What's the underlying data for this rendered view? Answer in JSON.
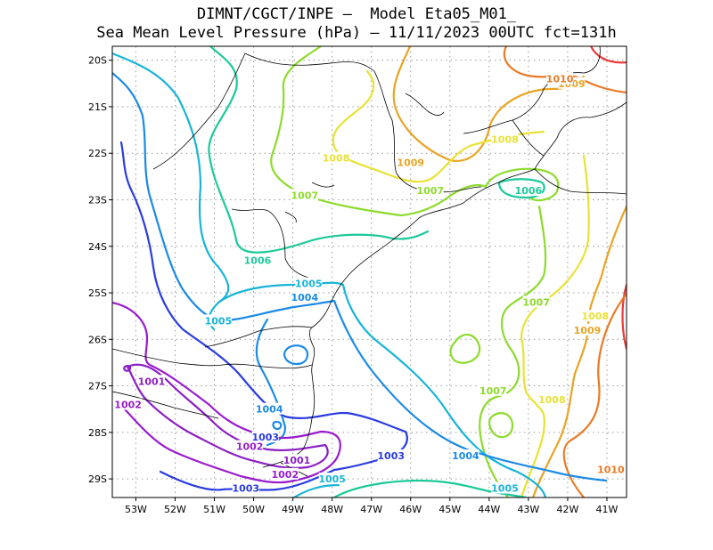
{
  "header": {
    "line1": "DIMNT/CGCT/INPE —  Model Eta05_M01_",
    "line2": "Sea Mean Level Pressure (hPa) — 11/11/2023 00UTC fct=131h"
  },
  "map": {
    "lat_labels": [
      "20S",
      "21S",
      "22S",
      "23S",
      "24S",
      "25S",
      "26S",
      "27S",
      "28S",
      "29S"
    ],
    "lon_labels": [
      "53W",
      "52W",
      "51W",
      "50W",
      "49W",
      "48W",
      "47W",
      "46W",
      "45W",
      "44W",
      "43W",
      "42W",
      "41W"
    ],
    "lat_range": [
      -29.4,
      -19.7
    ],
    "lon_range": [
      -53.6,
      -40.5
    ],
    "grid": true,
    "contour_interval_hPa": 1,
    "contour_colors": {
      "1001": "#8b1fc4",
      "1002": "#9a1ccc",
      "1003": "#2a3ce0",
      "1004": "#1a8ae6",
      "1005": "#18b4d8",
      "1006": "#1cc99a",
      "1007": "#8ddb2c",
      "1008": "#e8e234",
      "1009": "#e8a424",
      "1010": "#ea7a26",
      "1011": "#e83a3a"
    },
    "contour_labels": [
      {
        "text": "1001",
        "level": "1001",
        "lon": -52.6,
        "lat": -26.9
      },
      {
        "text": "1002",
        "level": "1002",
        "lon": -53.2,
        "lat": -27.4
      },
      {
        "text": "1002",
        "level": "1002",
        "lon": -50.1,
        "lat": -28.3
      },
      {
        "text": "1001",
        "level": "1001",
        "lon": -48.9,
        "lat": -28.6
      },
      {
        "text": "1002",
        "level": "1002",
        "lon": -49.2,
        "lat": -28.9
      },
      {
        "text": "1003",
        "level": "1003",
        "lon": -49.7,
        "lat": -28.1
      },
      {
        "text": "1003",
        "level": "1003",
        "lon": -50.2,
        "lat": -29.2
      },
      {
        "text": "1003",
        "level": "1003",
        "lon": -46.5,
        "lat": -28.5
      },
      {
        "text": "1004",
        "level": "1004",
        "lon": -49.6,
        "lat": -27.5
      },
      {
        "text": "1004",
        "level": "1004",
        "lon": -44.6,
        "lat": -28.5
      },
      {
        "text": "1004",
        "level": "1004",
        "lon": -48.7,
        "lat": -25.1
      },
      {
        "text": "1005",
        "level": "1005",
        "lon": -48.6,
        "lat": -24.8
      },
      {
        "text": "1005",
        "level": "1005",
        "lon": -50.9,
        "lat": -25.6
      },
      {
        "text": "1005",
        "level": "1005",
        "lon": -48.0,
        "lat": -29.0
      },
      {
        "text": "1005",
        "level": "1005",
        "lon": -43.6,
        "lat": -29.2
      },
      {
        "text": "1006",
        "level": "1006",
        "lon": -49.9,
        "lat": -24.3
      },
      {
        "text": "1006",
        "level": "1006",
        "lon": -43.0,
        "lat": -22.8
      },
      {
        "text": "1007",
        "level": "1007",
        "lon": -48.7,
        "lat": -22.9
      },
      {
        "text": "1007",
        "level": "1007",
        "lon": -45.5,
        "lat": -22.8
      },
      {
        "text": "1007",
        "level": "1007",
        "lon": -42.8,
        "lat": -25.2
      },
      {
        "text": "1007",
        "level": "1007",
        "lon": -43.9,
        "lat": -27.1
      },
      {
        "text": "1008",
        "level": "1008",
        "lon": -47.9,
        "lat": -22.1
      },
      {
        "text": "1008",
        "level": "1008",
        "lon": -43.6,
        "lat": -21.7
      },
      {
        "text": "1008",
        "level": "1008",
        "lon": -41.3,
        "lat": -25.5
      },
      {
        "text": "1008",
        "level": "1008",
        "lon": -42.4,
        "lat": -27.3
      },
      {
        "text": "1009",
        "level": "1009",
        "lon": -46.0,
        "lat": -22.2
      },
      {
        "text": "1009",
        "level": "1009",
        "lon": -41.5,
        "lat": -25.8
      },
      {
        "text": "1009",
        "level": "1009",
        "lon": -41.9,
        "lat": -20.5
      },
      {
        "text": "1010",
        "level": "1010",
        "lon": -42.2,
        "lat": -20.4
      },
      {
        "text": "1010",
        "level": "1010",
        "lon": -40.9,
        "lat": -28.8
      }
    ]
  }
}
